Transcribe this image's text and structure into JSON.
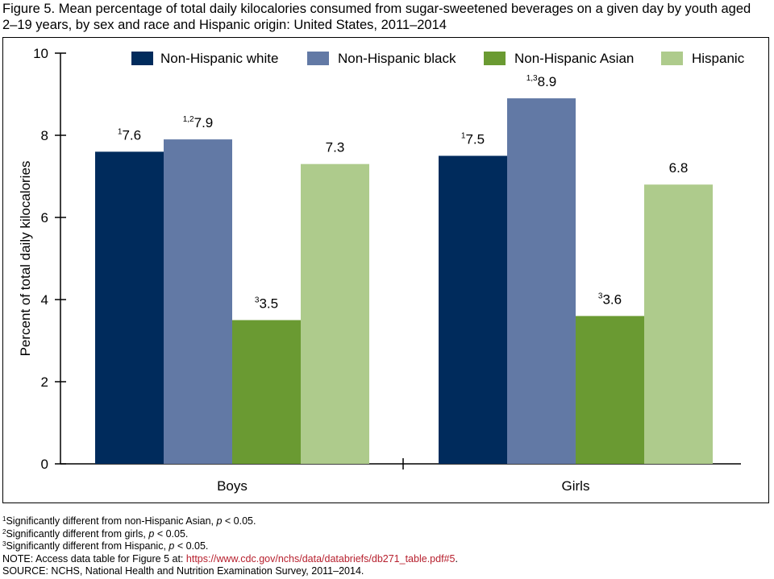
{
  "figure": {
    "title": "Figure 5. Mean percentage of total daily kilocalories consumed from sugar-sweetened beverages on a given day by youth aged 2–19 years, by sex and race and Hispanic origin: United States, 2011–2014"
  },
  "chart_data": {
    "type": "bar",
    "categories": [
      "Boys",
      "Girls"
    ],
    "ylabel": "Percent of total daily kilocalories",
    "xlabel": "",
    "ylim": [
      0,
      10
    ],
    "yticks": [
      0,
      2,
      4,
      6,
      8,
      10
    ],
    "grid": false,
    "legend_position": "top",
    "series": [
      {
        "name": "Non-Hispanic white",
        "color": "#002b5c",
        "values": [
          7.6,
          7.5
        ],
        "sups": [
          "1",
          "1"
        ]
      },
      {
        "name": "Non-Hispanic black",
        "color": "#6279a5",
        "values": [
          7.9,
          8.9
        ],
        "sups": [
          "1,2",
          "1,3"
        ]
      },
      {
        "name": "Non-Hispanic Asian",
        "color": "#6a9a32",
        "values": [
          3.5,
          3.6
        ],
        "sups": [
          "3",
          "3"
        ]
      },
      {
        "name": "Hispanic",
        "color": "#aecb8c",
        "values": [
          7.3,
          6.8
        ],
        "sups": [
          "",
          ""
        ]
      }
    ]
  },
  "footnotes": {
    "fn1": {
      "sup": "1",
      "text": "Significantly different from non-Hispanic Asian, ",
      "p": "p",
      "tail": " < 0.05."
    },
    "fn2": {
      "sup": "2",
      "text": "Significantly different from girls, ",
      "p": "p",
      "tail": " < 0.05."
    },
    "fn3": {
      "sup": "3",
      "text": "Significantly different from Hispanic, ",
      "p": "p",
      "tail": " < 0.05."
    },
    "note_prefix": "NOTE: Access data table for Figure 5 at: ",
    "note_link": "https://www.cdc.gov/nchs/data/databriefs/db271_table.pdf#5",
    "note_suffix": ".",
    "source": "SOURCE: NCHS, National Health and Nutrition Examination Survey, 2011–2014."
  }
}
